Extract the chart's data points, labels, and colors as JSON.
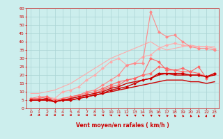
{
  "xlabel": "Vent moyen/en rafales ( km/h )",
  "bg_color": "#cceeed",
  "grid_color": "#aad4d4",
  "x_ticks": [
    0,
    1,
    2,
    3,
    4,
    5,
    6,
    7,
    8,
    9,
    10,
    11,
    12,
    13,
    14,
    15,
    16,
    17,
    18,
    19,
    20,
    21,
    22,
    23
  ],
  "ylim": [
    0,
    60
  ],
  "yticks": [
    0,
    5,
    10,
    15,
    20,
    25,
    30,
    35,
    40,
    45,
    50,
    55,
    60
  ],
  "lines": [
    {
      "color": "#ffaaaa",
      "lw": 0.8,
      "marker": null,
      "values": [
        9,
        9,
        10,
        11,
        13,
        15,
        18,
        21,
        24,
        27,
        30,
        32,
        34,
        36,
        38,
        40,
        37,
        35,
        36,
        37,
        38,
        37,
        37,
        37
      ]
    },
    {
      "color": "#ffaaaa",
      "lw": 0.8,
      "marker": "D",
      "ms": 2,
      "values": [
        6,
        6,
        7,
        6,
        10,
        11,
        13,
        17,
        20,
        24,
        28,
        30,
        26,
        27,
        31,
        32,
        36,
        38,
        39,
        38,
        37,
        37,
        37,
        36
      ]
    },
    {
      "color": "#ff8888",
      "lw": 0.8,
      "marker": "D",
      "ms": 2,
      "values": [
        6,
        7,
        7,
        4,
        6,
        7,
        8,
        10,
        11,
        14,
        17,
        20,
        26,
        27,
        27,
        58,
        46,
        43,
        44,
        40,
        37,
        36,
        36,
        35
      ]
    },
    {
      "color": "#ff6666",
      "lw": 0.8,
      "marker": "D",
      "ms": 2,
      "values": [
        6,
        6,
        7,
        5,
        6,
        7,
        8,
        9,
        10,
        12,
        14,
        16,
        17,
        18,
        20,
        21,
        25,
        24,
        23,
        22,
        22,
        21,
        19,
        21
      ]
    },
    {
      "color": "#ff6666",
      "lw": 0.8,
      "marker": "D",
      "ms": 2,
      "values": [
        5,
        5,
        6,
        4,
        5,
        6,
        7,
        8,
        9,
        11,
        13,
        14,
        17,
        18,
        20,
        30,
        28,
        23,
        23,
        24,
        22,
        25,
        18,
        21
      ]
    },
    {
      "color": "#cc0000",
      "lw": 1.0,
      "marker": "D",
      "ms": 2,
      "values": [
        5,
        5,
        5,
        4,
        5,
        5,
        6,
        7,
        8,
        9,
        11,
        12,
        13,
        15,
        17,
        18,
        21,
        21,
        21,
        21,
        20,
        20,
        19,
        21
      ]
    },
    {
      "color": "#cc0000",
      "lw": 1.0,
      "marker": null,
      "values": [
        5,
        5,
        6,
        4,
        5,
        6,
        7,
        8,
        9,
        10,
        12,
        13,
        15,
        16,
        17,
        18,
        20,
        21,
        20,
        20,
        20,
        20,
        19,
        20
      ]
    },
    {
      "color": "#cc0000",
      "lw": 1.0,
      "marker": null,
      "values": [
        5,
        5,
        5,
        4,
        5,
        5,
        6,
        7,
        8,
        9,
        10,
        11,
        12,
        13,
        14,
        15,
        16,
        17,
        17,
        17,
        16,
        16,
        15,
        16
      ]
    }
  ]
}
